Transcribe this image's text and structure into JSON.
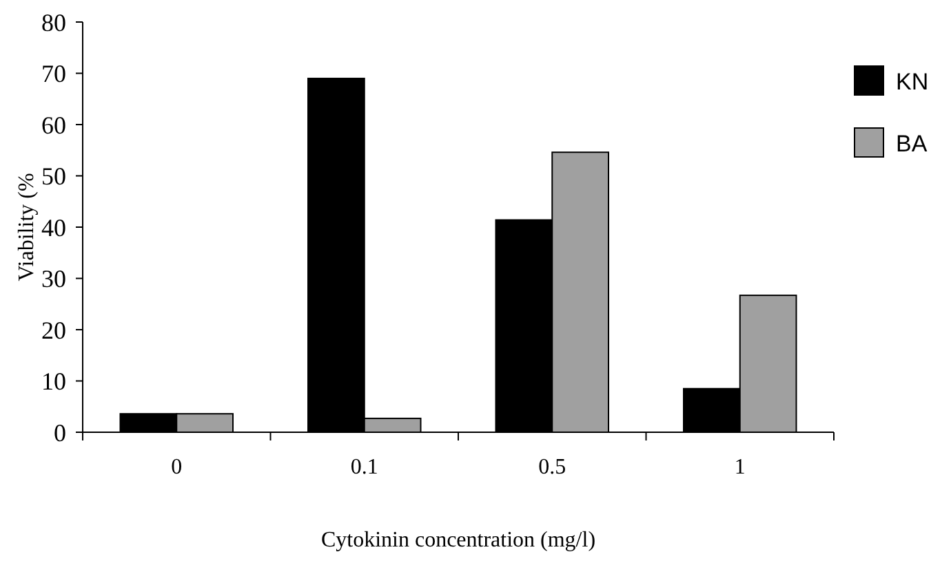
{
  "chart_data": {
    "type": "bar",
    "xlabel": "Cytokinin concentration (mg/l)",
    "ylabel": "Viability (%",
    "categories": [
      "0",
      "0.1",
      "0.5",
      "1"
    ],
    "series": [
      {
        "name": "KN",
        "color": "#000000",
        "values": [
          3.6,
          69,
          41.4,
          8.5
        ]
      },
      {
        "name": "BA",
        "color": "#a0a0a0",
        "values": [
          3.6,
          2.7,
          54.6,
          26.7
        ]
      }
    ],
    "ylim": [
      0,
      80
    ],
    "yticks": [
      0,
      10,
      20,
      30,
      40,
      50,
      60,
      70,
      80
    ],
    "legend": "top right",
    "grid": false
  }
}
